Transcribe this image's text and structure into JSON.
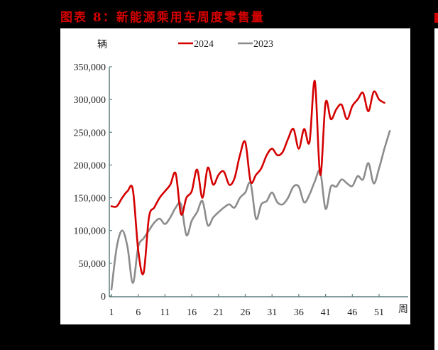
{
  "title": "图表 8：新能源乘用车周度零售量",
  "chart_data": {
    "type": "line",
    "title": "图表 8：新能源乘用车周度零售量",
    "ylabel": "辆",
    "xlabel": "周",
    "ylim": [
      0,
      350000
    ],
    "yticks": [
      0,
      50000,
      100000,
      150000,
      200000,
      250000,
      300000,
      350000
    ],
    "ytick_labels": [
      "0",
      "50,000",
      "100,000",
      "150,000",
      "200,000",
      "250,000",
      "300,000",
      "350,000"
    ],
    "xticks": [
      1,
      6,
      11,
      16,
      21,
      26,
      31,
      36,
      41,
      46,
      51
    ],
    "xlim": [
      1,
      53
    ],
    "grid": false,
    "legend_position": "top",
    "series": [
      {
        "name": "2024",
        "color": "#d40000",
        "x": [
          1,
          2,
          3,
          4,
          5,
          6,
          7,
          8,
          9,
          10,
          11,
          12,
          13,
          14,
          15,
          16,
          17,
          18,
          19,
          20,
          21,
          22,
          23,
          24,
          25,
          26,
          27,
          28,
          29,
          30,
          31,
          32,
          33,
          34,
          35,
          36,
          37,
          38,
          39,
          40,
          41,
          42,
          43,
          44,
          45,
          46,
          47,
          48,
          49,
          50,
          51,
          52
        ],
        "values": [
          137000,
          137000,
          150000,
          160000,
          162000,
          70000,
          35000,
          120000,
          135000,
          150000,
          160000,
          170000,
          187000,
          125000,
          150000,
          160000,
          193000,
          150000,
          196000,
          170000,
          185000,
          190000,
          170000,
          180000,
          215000,
          235000,
          175000,
          185000,
          195000,
          215000,
          225000,
          215000,
          220000,
          240000,
          255000,
          225000,
          255000,
          235000,
          328000,
          185000,
          295000,
          270000,
          285000,
          292000,
          270000,
          290000,
          300000,
          310000,
          282000,
          312000,
          300000,
          295000
        ]
      },
      {
        "name": "2023",
        "color": "#8c8c8c",
        "x": [
          1,
          2,
          3,
          4,
          5,
          6,
          7,
          8,
          9,
          10,
          11,
          12,
          13,
          14,
          15,
          16,
          17,
          18,
          19,
          20,
          21,
          22,
          23,
          24,
          25,
          26,
          27,
          28,
          29,
          30,
          31,
          32,
          33,
          34,
          35,
          36,
          37,
          38,
          39,
          40,
          41,
          42,
          43,
          44,
          45,
          46,
          47,
          48,
          49,
          50,
          51,
          52,
          53
        ],
        "values": [
          10000,
          75000,
          100000,
          75000,
          20000,
          75000,
          88000,
          100000,
          112000,
          118000,
          110000,
          120000,
          135000,
          140000,
          93000,
          115000,
          128000,
          145000,
          108000,
          120000,
          128000,
          135000,
          140000,
          135000,
          150000,
          158000,
          172000,
          118000,
          140000,
          145000,
          158000,
          143000,
          140000,
          150000,
          167000,
          167000,
          143000,
          155000,
          175000,
          190000,
          133000,
          167000,
          167000,
          178000,
          172000,
          168000,
          183000,
          178000,
          203000,
          172000,
          195000,
          225000,
          252000
        ]
      }
    ]
  }
}
